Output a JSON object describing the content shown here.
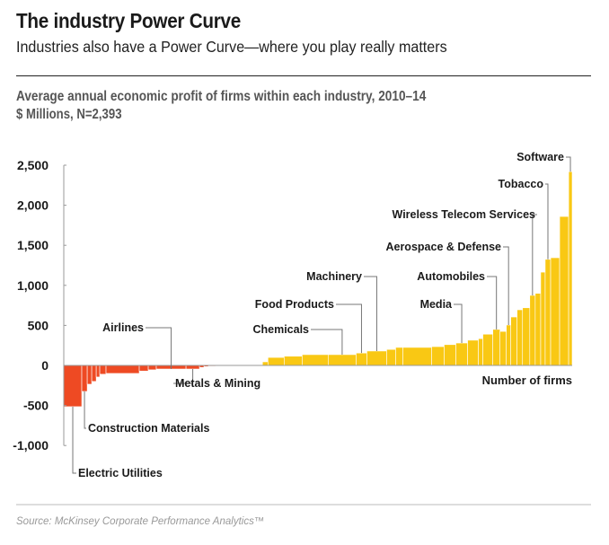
{
  "header": {
    "title": "The industry Power Curve",
    "subtitle": "Industries also have a Power Curve—where you play really matters"
  },
  "footer": {
    "source": "Source: McKinsey Corporate Performance Analytics™"
  },
  "colors": {
    "negative": "#ee4a23",
    "positive": "#f9c814",
    "separator": "#ffffff",
    "axis": "#999999",
    "leader": "#777777"
  },
  "chart_data": {
    "type": "bar",
    "title": "Average annual economic profit of firms within each industry, 2010–14",
    "units": "$ Millions, N=2,393",
    "xlabel": "Number of firms",
    "ylabel": "",
    "ylim": [
      -1000,
      2500
    ],
    "xlim": [
      0,
      2393
    ],
    "yticks": [
      2500,
      2000,
      1500,
      1000,
      500,
      0,
      -500,
      -1000
    ],
    "ytick_labels": [
      "2,500",
      "2,000",
      "1,500",
      "1,000",
      "500",
      "0",
      "-500",
      "-1,000"
    ],
    "grid": false,
    "bar_width_note": "bar widths proportional to number of firms in each industry",
    "bars": [
      {
        "firms": 112,
        "value": -515
      },
      {
        "firms": 34,
        "value": -325
      },
      {
        "firms": 28,
        "value": -235
      },
      {
        "firms": 28,
        "value": -200
      },
      {
        "firms": 22,
        "value": -145
      },
      {
        "firms": 39,
        "value": -110
      },
      {
        "firms": 207,
        "value": -100
      },
      {
        "firms": 56,
        "value": -70
      },
      {
        "firms": 50,
        "value": -55
      },
      {
        "firms": 185,
        "value": -45
      },
      {
        "firms": 84,
        "value": -45
      },
      {
        "firms": 28,
        "value": -25
      },
      {
        "firms": 28,
        "value": -15
      },
      {
        "firms": 45,
        "value": -10
      },
      {
        "firms": 291,
        "value": 0
      },
      {
        "firms": 34,
        "value": 45
      },
      {
        "firms": 101,
        "value": 100
      },
      {
        "firms": 112,
        "value": 115
      },
      {
        "firms": 162,
        "value": 135
      },
      {
        "firms": 174,
        "value": 135
      },
      {
        "firms": 67,
        "value": 155
      },
      {
        "firms": 123,
        "value": 180
      },
      {
        "firms": 56,
        "value": 200
      },
      {
        "firms": 45,
        "value": 225
      },
      {
        "firms": 179,
        "value": 225
      },
      {
        "firms": 78,
        "value": 235
      },
      {
        "firms": 73,
        "value": 260
      },
      {
        "firms": 73,
        "value": 280
      },
      {
        "firms": 67,
        "value": 315
      },
      {
        "firms": 28,
        "value": 335
      },
      {
        "firms": 62,
        "value": 390
      },
      {
        "firms": 45,
        "value": 450
      },
      {
        "firms": 39,
        "value": 425
      },
      {
        "firms": 28,
        "value": 505
      },
      {
        "firms": 39,
        "value": 605
      },
      {
        "firms": 34,
        "value": 695
      },
      {
        "firms": 45,
        "value": 720
      },
      {
        "firms": 34,
        "value": 875
      },
      {
        "firms": 34,
        "value": 900
      },
      {
        "firms": 28,
        "value": 1165
      },
      {
        "firms": 34,
        "value": 1325
      },
      {
        "firms": 56,
        "value": 1345
      },
      {
        "firms": 56,
        "value": 1860
      },
      {
        "firms": 22,
        "value": 2420
      }
    ],
    "annotations": [
      {
        "label": "Electric Utilities",
        "bar": 0,
        "side": "below"
      },
      {
        "label": "Construction Materials",
        "bar": 1,
        "side": "below"
      },
      {
        "label": "Airlines",
        "bar": 9,
        "side": "above"
      },
      {
        "label": "Metals & Mining",
        "bar": 10,
        "side": "below"
      },
      {
        "label": "Chemicals",
        "bar": 19,
        "side": "above"
      },
      {
        "label": "Food Products",
        "bar": 20,
        "side": "above"
      },
      {
        "label": "Machinery",
        "bar": 21,
        "side": "above"
      },
      {
        "label": "Media",
        "bar": 27,
        "side": "above"
      },
      {
        "label": "Automobiles",
        "bar": 31,
        "side": "above"
      },
      {
        "label": "Aerospace & Defense",
        "bar": 33,
        "side": "above"
      },
      {
        "label": "Wireless Telecom Services",
        "bar": 37,
        "side": "above"
      },
      {
        "label": "Tobacco",
        "bar": 40,
        "side": "above"
      },
      {
        "label": "Software",
        "bar": 43,
        "side": "above"
      }
    ]
  }
}
